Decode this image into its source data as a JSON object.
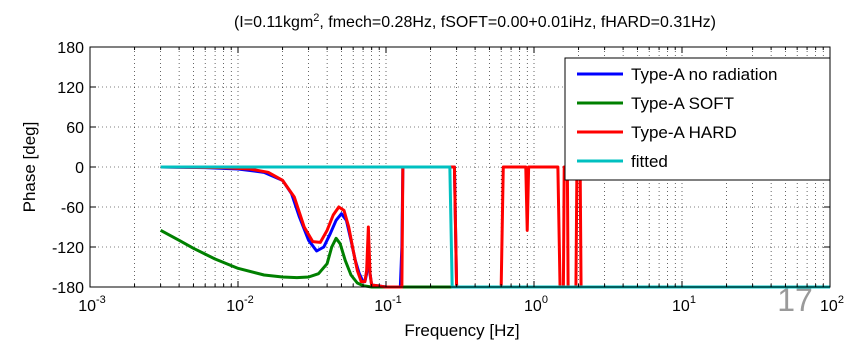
{
  "chart_data": {
    "type": "line",
    "title_parts": [
      "(I=0.11kgm",
      "2",
      ", fmech=0.28Hz, fSOFT=0.00+0.01iHz, fHARD=0.31Hz)"
    ],
    "xlabel": "Frequency [Hz]",
    "ylabel": "Phase [deg]",
    "x_scale": "log",
    "xlim": [
      0.001,
      100
    ],
    "ylim": [
      -180,
      180
    ],
    "x_ticks": [
      {
        "base": "10",
        "exp": "-3"
      },
      {
        "base": "10",
        "exp": "-2"
      },
      {
        "base": "10",
        "exp": "-1"
      },
      {
        "base": "10",
        "exp": "0"
      },
      {
        "base": "10",
        "exp": "1"
      },
      {
        "base": "10",
        "exp": "2"
      }
    ],
    "y_ticks": [
      "180",
      "120",
      "60",
      "0",
      "-60",
      "-120",
      "-180"
    ],
    "grid": true,
    "legend_position": "top-right",
    "series": [
      {
        "name": "Type-A no radiation",
        "color": "#0000ff",
        "points": [
          [
            0.003,
            0
          ],
          [
            0.006,
            -1
          ],
          [
            0.01,
            -3
          ],
          [
            0.015,
            -8
          ],
          [
            0.02,
            -20
          ],
          [
            0.023,
            -40
          ],
          [
            0.026,
            -75
          ],
          [
            0.03,
            -110
          ],
          [
            0.034,
            -126
          ],
          [
            0.038,
            -120
          ],
          [
            0.042,
            -100
          ],
          [
            0.046,
            -80
          ],
          [
            0.05,
            -70
          ],
          [
            0.054,
            -80
          ],
          [
            0.058,
            -110
          ],
          [
            0.062,
            -140
          ],
          [
            0.066,
            -160
          ],
          [
            0.07,
            -172
          ],
          [
            0.072,
            -172
          ],
          [
            0.074,
            -160
          ],
          [
            0.076,
            -135
          ],
          [
            0.078,
            -160
          ],
          [
            0.08,
            -177
          ],
          [
            0.1,
            -180
          ],
          [
            0.125,
            -180
          ],
          [
            0.128,
            -120
          ],
          [
            0.13,
            0
          ],
          [
            0.29,
            0
          ],
          [
            0.3,
            -180
          ],
          [
            100,
            -180
          ]
        ]
      },
      {
        "name": "Type-A SOFT",
        "color": "#008000",
        "points": [
          [
            0.003,
            -95
          ],
          [
            0.004,
            -110
          ],
          [
            0.005,
            -122
          ],
          [
            0.007,
            -138
          ],
          [
            0.01,
            -152
          ],
          [
            0.015,
            -162
          ],
          [
            0.02,
            -165
          ],
          [
            0.025,
            -166
          ],
          [
            0.03,
            -165
          ],
          [
            0.035,
            -160
          ],
          [
            0.04,
            -145
          ],
          [
            0.043,
            -120
          ],
          [
            0.046,
            -107
          ],
          [
            0.049,
            -115
          ],
          [
            0.053,
            -140
          ],
          [
            0.058,
            -162
          ],
          [
            0.064,
            -174
          ],
          [
            0.07,
            -178
          ],
          [
            0.08,
            -180
          ],
          [
            100,
            -180
          ]
        ]
      },
      {
        "name": "Type-A HARD",
        "color": "#ff0000",
        "points": [
          [
            0.003,
            0
          ],
          [
            0.008,
            -1
          ],
          [
            0.012,
            -3
          ],
          [
            0.016,
            -8
          ],
          [
            0.02,
            -20
          ],
          [
            0.024,
            -45
          ],
          [
            0.028,
            -90
          ],
          [
            0.032,
            -112
          ],
          [
            0.036,
            -113
          ],
          [
            0.04,
            -95
          ],
          [
            0.044,
            -72
          ],
          [
            0.048,
            -60
          ],
          [
            0.052,
            -65
          ],
          [
            0.056,
            -90
          ],
          [
            0.06,
            -125
          ],
          [
            0.064,
            -155
          ],
          [
            0.068,
            -172
          ],
          [
            0.072,
            -172
          ],
          [
            0.074,
            -155
          ],
          [
            0.076,
            -90
          ],
          [
            0.078,
            -160
          ],
          [
            0.08,
            -177
          ],
          [
            0.1,
            -180
          ],
          [
            0.128,
            -180
          ],
          [
            0.13,
            0
          ],
          [
            0.29,
            0
          ],
          [
            0.3,
            -180
          ],
          [
            0.6,
            -180
          ],
          [
            0.62,
            0
          ],
          [
            0.88,
            0
          ],
          [
            0.9,
            -95
          ],
          [
            0.92,
            0
          ],
          [
            1.45,
            0
          ],
          [
            1.5,
            -180
          ],
          [
            1.58,
            -180
          ],
          [
            1.6,
            0
          ],
          [
            1.68,
            0
          ],
          [
            1.7,
            -180
          ],
          [
            1.92,
            -180
          ],
          [
            1.95,
            0
          ],
          [
            2.05,
            0
          ],
          [
            2.08,
            -180
          ],
          [
            100,
            -180
          ]
        ]
      },
      {
        "name": "fitted",
        "color": "#00c0c0",
        "points": [
          [
            0.003,
            0
          ],
          [
            0.27,
            0
          ],
          [
            0.28,
            -180
          ],
          [
            100,
            -180
          ]
        ]
      }
    ]
  },
  "page_number": "17"
}
